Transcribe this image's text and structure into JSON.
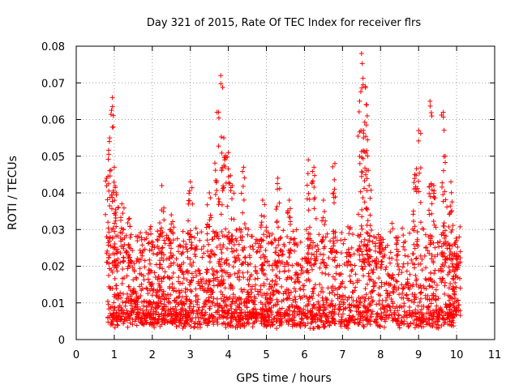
{
  "chart_data": {
    "type": "scatter",
    "title": "Day 321 of 2015, Rate Of TEC Index for receiver flrs",
    "xlabel": "GPS time / hours",
    "ylabel": "ROTI / TECUs",
    "xlim": [
      0,
      11
    ],
    "ylim": [
      0,
      0.08
    ],
    "xticks": [
      "0",
      "1",
      "2",
      "3",
      "4",
      "5",
      "6",
      "7",
      "8",
      "9",
      "10",
      "11"
    ],
    "yticks": [
      "0",
      "0.01",
      "0.02",
      "0.03",
      "0.04",
      "0.05",
      "0.06",
      "0.07",
      "0.08"
    ],
    "grid": true,
    "marker": "+",
    "color": "#ff0000",
    "series": [
      {
        "name": "ROTI",
        "x_range": [
          0.83,
          10.1
        ],
        "baseline_range": [
          0.003,
          0.028
        ],
        "peaks": [
          {
            "x": 0.8,
            "y": 0.044
          },
          {
            "x": 0.88,
            "y": 0.055
          },
          {
            "x": 0.95,
            "y": 0.066
          },
          {
            "x": 1.0,
            "y": 0.047
          },
          {
            "x": 1.05,
            "y": 0.04
          },
          {
            "x": 1.2,
            "y": 0.037
          },
          {
            "x": 1.4,
            "y": 0.033
          },
          {
            "x": 2.25,
            "y": 0.042
          },
          {
            "x": 2.5,
            "y": 0.034
          },
          {
            "x": 3.0,
            "y": 0.043
          },
          {
            "x": 3.5,
            "y": 0.04
          },
          {
            "x": 3.7,
            "y": 0.062
          },
          {
            "x": 3.8,
            "y": 0.072
          },
          {
            "x": 3.88,
            "y": 0.055
          },
          {
            "x": 4.0,
            "y": 0.051
          },
          {
            "x": 4.1,
            "y": 0.042
          },
          {
            "x": 4.4,
            "y": 0.047
          },
          {
            "x": 4.9,
            "y": 0.038
          },
          {
            "x": 5.3,
            "y": 0.044
          },
          {
            "x": 5.6,
            "y": 0.038
          },
          {
            "x": 6.1,
            "y": 0.049
          },
          {
            "x": 6.25,
            "y": 0.047
          },
          {
            "x": 6.5,
            "y": 0.038
          },
          {
            "x": 6.8,
            "y": 0.048
          },
          {
            "x": 7.5,
            "y": 0.078
          },
          {
            "x": 7.6,
            "y": 0.069
          },
          {
            "x": 7.55,
            "y": 0.055
          },
          {
            "x": 7.45,
            "y": 0.065
          },
          {
            "x": 7.65,
            "y": 0.061
          },
          {
            "x": 7.7,
            "y": 0.042
          },
          {
            "x": 8.0,
            "y": 0.028
          },
          {
            "x": 8.9,
            "y": 0.045
          },
          {
            "x": 9.0,
            "y": 0.057
          },
          {
            "x": 9.3,
            "y": 0.065
          },
          {
            "x": 9.4,
            "y": 0.042
          },
          {
            "x": 9.65,
            "y": 0.062
          },
          {
            "x": 9.7,
            "y": 0.05
          },
          {
            "x": 9.85,
            "y": 0.043
          },
          {
            "x": 10.0,
            "y": 0.027
          }
        ]
      }
    ]
  }
}
